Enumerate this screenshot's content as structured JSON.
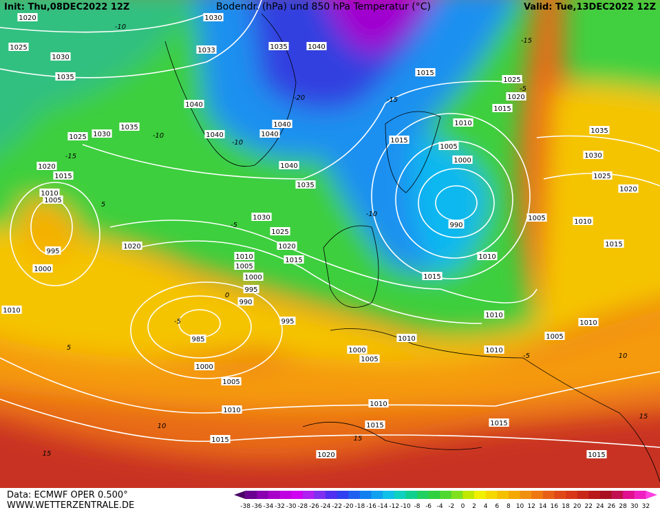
{
  "header": {
    "init": "Init: Thu,08DEC2022 12Z",
    "title": "Bodendr. (hPa) und 850 hPa Temperatur (°C)",
    "valid": "Valid: Tue,13DEC2022 12Z"
  },
  "footer": {
    "source": "Data: ECMWF OPER 0.500°",
    "website": "WWW.WETTERZENTRALE.DE"
  },
  "isobar_labels": [
    "1020",
    "1030",
    "1025",
    "1030",
    "1033",
    "1035",
    "1040",
    "1035",
    "1015",
    "1025",
    "1020",
    "1015",
    "1040",
    "1035",
    "1040",
    "1040",
    "1040",
    "1010",
    "1005",
    "1015",
    "1025",
    "1030",
    "1020",
    "1015",
    "1040",
    "1035",
    "1000",
    "1010",
    "1005",
    "1035",
    "1030",
    "1025",
    "1020",
    "990",
    "1005",
    "1010",
    "1030",
    "1025",
    "1020",
    "1020",
    "1015",
    "995",
    "1010",
    "1005",
    "1015",
    "1010",
    "1000",
    "1000",
    "1015",
    "995",
    "990",
    "1010",
    "995",
    "1010",
    "1010",
    "985",
    "1005",
    "1010",
    "1000",
    "1005",
    "1010",
    "1000",
    "1005",
    "1010",
    "1010",
    "1015",
    "1015",
    "1015",
    "1020",
    "1015"
  ],
  "isotherm_labels": [
    "-10",
    "-15",
    "-5",
    "-15",
    "-10",
    "-20",
    "-10",
    "-5",
    "-10",
    "5",
    "0",
    "-5",
    "5",
    "-5",
    "10",
    "10",
    "15",
    "15",
    "-15",
    "15"
  ],
  "legend": {
    "labels": [
      "-38",
      "-36",
      "-34",
      "-32",
      "-30",
      "-28",
      "-26",
      "-24",
      "-22",
      "-20",
      "-18",
      "-16",
      "-14",
      "-12",
      "-10",
      "-8",
      "-6",
      "-4",
      "-2",
      "0",
      "2",
      "4",
      "6",
      "8",
      "10",
      "12",
      "14",
      "16",
      "18",
      "20",
      "22",
      "24",
      "26",
      "28",
      "30",
      "32"
    ],
    "colors": [
      "#4b0068",
      "#6a0090",
      "#8a00b0",
      "#a800c8",
      "#c000e0",
      "#d000f0",
      "#b020f0",
      "#8030f0",
      "#5030f0",
      "#3040f0",
      "#2060f0",
      "#1080f0",
      "#10a0f0",
      "#10c0e8",
      "#10d0c0",
      "#10d090",
      "#20d060",
      "#30d040",
      "#50d830",
      "#80e020",
      "#c0e800",
      "#f0f000",
      "#f5d800",
      "#f5c000",
      "#f5a800",
      "#f09010",
      "#f07810",
      "#e86018",
      "#e04818",
      "#d83818",
      "#c82818",
      "#b81818",
      "#a81020",
      "#c01050",
      "#e01090",
      "#f020c0",
      "#ff40e0"
    ]
  }
}
